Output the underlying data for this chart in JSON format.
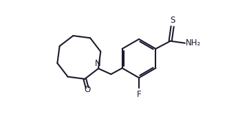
{
  "bg_color": "#ffffff",
  "line_color": "#1a1a2e",
  "line_width": 1.5,
  "font_size": 8.5,
  "figsize": [
    3.3,
    1.79
  ],
  "dpi": 100,
  "xlim": [
    0,
    10
  ],
  "ylim": [
    0,
    6
  ]
}
